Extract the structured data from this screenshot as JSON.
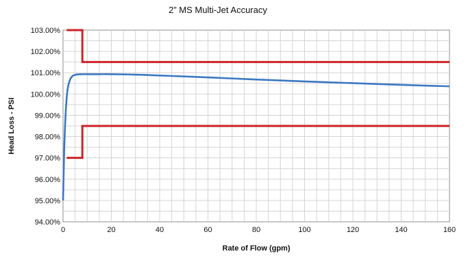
{
  "chart_data": {
    "type": "line",
    "title": "2”  MS Multi-Jet Accuracy",
    "xlabel": "Rate of Flow (gpm)",
    "ylabel": "Head Loss - PSI",
    "xlim": [
      0,
      160
    ],
    "ylim": [
      94,
      103
    ],
    "x_ticks": [
      "0",
      "20",
      "40",
      "60",
      "80",
      "100",
      "120",
      "140",
      "160"
    ],
    "y_ticks": [
      "94.00%",
      "95.00%",
      "96.00%",
      "97.00%",
      "98.00%",
      "99.00%",
      "100.00%",
      "101.00%",
      "102.00%",
      "103.00%"
    ],
    "grid": true,
    "legend": "none",
    "series": [
      {
        "color": "#3b78c2",
        "x": [
          0,
          0.5,
          1,
          1.5,
          2,
          3,
          4,
          5,
          6,
          8,
          10,
          15,
          20,
          30,
          40,
          60,
          80,
          100,
          120,
          140,
          160
        ],
        "y": [
          95.0,
          97.4,
          98.9,
          99.8,
          100.3,
          100.7,
          100.85,
          100.9,
          100.92,
          100.93,
          100.93,
          100.93,
          100.93,
          100.91,
          100.87,
          100.78,
          100.68,
          100.59,
          100.51,
          100.43,
          100.36
        ]
      },
      {
        "color": "#cc2229",
        "x": [
          1.5,
          8,
          8,
          160
        ],
        "y": [
          103.0,
          103.0,
          101.5,
          101.5
        ]
      },
      {
        "color": "#cc2229",
        "x": [
          1.5,
          8,
          8,
          160
        ],
        "y": [
          97.0,
          97.0,
          98.5,
          98.5
        ]
      }
    ]
  }
}
